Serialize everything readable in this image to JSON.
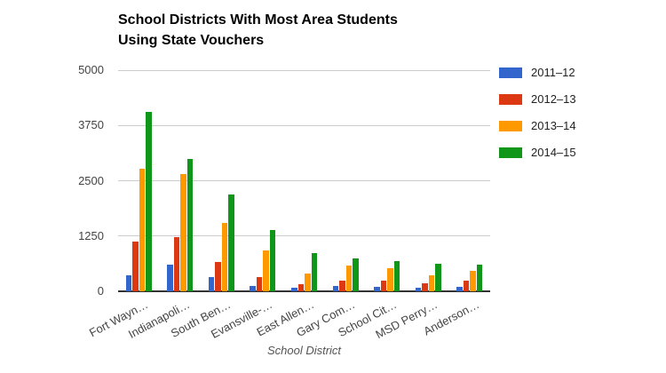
{
  "chart": {
    "title_line1": "School Districts With Most Area Students",
    "title_line2": "Using State Vouchers"
  },
  "chart_data": {
    "type": "bar",
    "title": "School Districts With Most Area Students Using State Vouchers",
    "xlabel": "School District",
    "ylabel": "",
    "ylim": [
      0,
      5000
    ],
    "yticks": [
      0,
      1250,
      2500,
      3750,
      5000
    ],
    "grid": true,
    "legend_position": "right",
    "categories": [
      "Fort Wayn…",
      "Indianapoli…",
      "South Ben…",
      "Evansville-…",
      "East Allen…",
      "Gary Com…",
      "School Cit…",
      "MSD Perry…",
      "Anderson…"
    ],
    "series": [
      {
        "name": "2011–12",
        "color": "#3366CC",
        "values": [
          370,
          610,
          330,
          115,
          90,
          120,
          95,
          75,
          100
        ]
      },
      {
        "name": "2012–13",
        "color": "#DC3912",
        "values": [
          1125,
          1220,
          660,
          330,
          160,
          250,
          240,
          190,
          235
        ]
      },
      {
        "name": "2013–14",
        "color": "#FF9900",
        "values": [
          2780,
          2650,
          1540,
          920,
          400,
          575,
          530,
          355,
          470
        ]
      },
      {
        "name": "2014–15",
        "color": "#109618",
        "values": [
          4050,
          3000,
          2190,
          1390,
          865,
          740,
          680,
          620,
          600
        ]
      }
    ]
  }
}
